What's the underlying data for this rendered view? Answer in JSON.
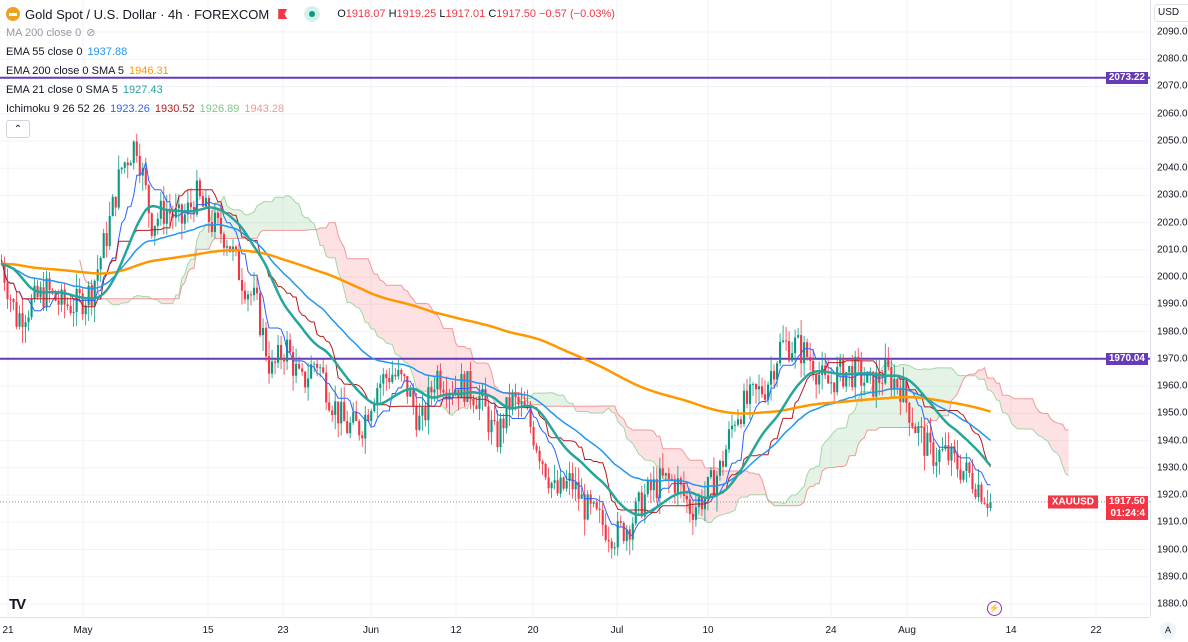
{
  "header": {
    "symbol_title": "Gold Spot / U.S. Dollar · 4h · FOREXCOM",
    "open_label": "O",
    "open": "1918.07",
    "high_label": "H",
    "high": "1919.25",
    "low_label": "L",
    "low": "1917.01",
    "close_label": "C",
    "close": "1917.50",
    "change": "−0.57 (−0.03%)"
  },
  "indicators": [
    {
      "label": "MA 200 close 0",
      "values": [],
      "hidden": true
    },
    {
      "label": "EMA 55 close 0",
      "values": [
        {
          "v": "1937.88",
          "color": "#2196f3"
        }
      ]
    },
    {
      "label": "EMA 200 close 0 SMA 5",
      "values": [
        {
          "v": "1946.31",
          "color": "#ff9800"
        }
      ]
    },
    {
      "label": "EMA 21 close 0 SMA 5",
      "values": [
        {
          "v": "1927.43",
          "color": "#26a69a"
        }
      ]
    },
    {
      "label": "Ichimoku 9 26 52 26",
      "values": [
        {
          "v": "1923.26",
          "color": "#2962ff"
        },
        {
          "v": "1930.52",
          "color": "#b71c1c"
        },
        {
          "v": "1926.89",
          "color": "#81c784"
        },
        {
          "v": "1943.28",
          "color": "#ef9a9a"
        }
      ]
    }
  ],
  "price_axis": {
    "currency": "USD",
    "ticks": [
      "2090.00",
      "2080.00",
      "2070.00",
      "2060.00",
      "2050.00",
      "2040.00",
      "2030.00",
      "2020.00",
      "2010.00",
      "2000.00",
      "1990.00",
      "1980.00",
      "1970.00",
      "1960.00",
      "1950.00",
      "1940.00",
      "1930.00",
      "1920.00",
      "1910.00",
      "1900.00",
      "1890.00",
      "1880.00"
    ],
    "range": [
      1880,
      2090
    ],
    "auto_label": "A"
  },
  "time_axis": {
    "labels": [
      "21",
      "May",
      "15",
      "23",
      "Jun",
      "12",
      "20",
      "Jul",
      "10",
      "24",
      "Aug",
      "14",
      "22"
    ]
  },
  "horizontal_lines": [
    {
      "price": 2073.22,
      "label": "2073.22",
      "color": "#673ab7"
    },
    {
      "price": 1970.04,
      "label": "1970.04",
      "color": "#673ab7"
    }
  ],
  "last_price": {
    "symbol": "XAUUSD",
    "price": 1917.5,
    "label": "1917.50",
    "countdown": "01:24:4",
    "color": "#f23645"
  },
  "chart_data": {
    "type": "candlestick",
    "period": "4h",
    "ylim": [
      1880,
      2090
    ],
    "close_path": [
      2005,
      1985,
      1990,
      1995,
      1990,
      1990,
      1995,
      2015,
      2040,
      2050,
      2020,
      2025,
      2020,
      2030,
      2020,
      2015,
      2000,
      1990,
      1965,
      1975,
      1960,
      1970,
      1955,
      1945,
      1945,
      1960,
      1965,
      1960,
      1945,
      1965,
      1960,
      1960,
      1955,
      1940,
      1955,
      1950,
      1935,
      1920,
      1925,
      1915,
      1910,
      1905,
      1910,
      1920,
      1925,
      1925,
      1915,
      1920,
      1930,
      1950,
      1955,
      1960,
      1975,
      1975,
      1970,
      1960,
      1965,
      1965,
      1960,
      1965,
      1960,
      1945,
      1935,
      1935,
      1930,
      1925,
      1917.5
    ],
    "up_color": "#089981",
    "down_color": "#f23645"
  }
}
